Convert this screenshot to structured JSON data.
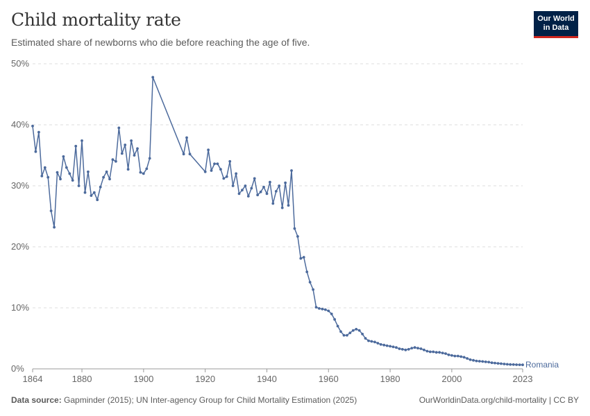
{
  "header": {
    "title": "Child mortality rate",
    "subtitle": "Estimated share of newborns who die before reaching the age of five."
  },
  "logo": {
    "line1": "Our World",
    "line2": "in Data",
    "bg_color": "#002147",
    "accent_color": "#ce261e"
  },
  "footer": {
    "source_label": "Data source:",
    "source_text": "Gapminder (2015); UN Inter-agency Group for Child Mortality Estimation (2025)",
    "link_text": "OurWorldinData.org/child-mortality | CC BY"
  },
  "chart_data": {
    "type": "line",
    "title": "Child mortality rate",
    "subtitle": "Estimated share of newborns who die before reaching the age of five.",
    "xlabel": "",
    "ylabel": "",
    "xlim": [
      1864,
      2023
    ],
    "ylim": [
      0,
      50
    ],
    "x_ticks": [
      "1864",
      "1880",
      "1900",
      "1920",
      "1940",
      "1960",
      "1980",
      "2000",
      "2023"
    ],
    "x_tick_values": [
      1864,
      1880,
      1900,
      1920,
      1940,
      1960,
      1980,
      2000,
      2023
    ],
    "y_ticks": [
      "0%",
      "10%",
      "20%",
      "30%",
      "40%",
      "50%"
    ],
    "y_tick_values": [
      0,
      10,
      20,
      30,
      40,
      50
    ],
    "grid": "horizontal-dashed",
    "line_color": "#4c6a9c",
    "series": [
      {
        "name": "Romania",
        "x": [
          1864,
          1865,
          1866,
          1867,
          1868,
          1869,
          1870,
          1871,
          1872,
          1873,
          1874,
          1875,
          1876,
          1877,
          1878,
          1879,
          1880,
          1881,
          1882,
          1883,
          1884,
          1885,
          1886,
          1887,
          1888,
          1889,
          1890,
          1891,
          1892,
          1893,
          1894,
          1895,
          1896,
          1897,
          1898,
          1899,
          1900,
          1901,
          1902,
          1903,
          1913,
          1914,
          1915,
          1920,
          1921,
          1922,
          1923,
          1924,
          1925,
          1926,
          1927,
          1928,
          1929,
          1930,
          1931,
          1932,
          1933,
          1934,
          1935,
          1936,
          1937,
          1938,
          1939,
          1940,
          1941,
          1942,
          1943,
          1944,
          1945,
          1946,
          1947,
          1948,
          1949,
          1950,
          1951,
          1952,
          1953,
          1954,
          1955,
          1956,
          1957,
          1958,
          1959,
          1960,
          1961,
          1962,
          1963,
          1964,
          1965,
          1966,
          1967,
          1968,
          1969,
          1970,
          1971,
          1972,
          1973,
          1974,
          1975,
          1976,
          1977,
          1978,
          1979,
          1980,
          1981,
          1982,
          1983,
          1984,
          1985,
          1986,
          1987,
          1988,
          1989,
          1990,
          1991,
          1992,
          1993,
          1994,
          1995,
          1996,
          1997,
          1998,
          1999,
          2000,
          2001,
          2002,
          2003,
          2004,
          2005,
          2006,
          2007,
          2008,
          2009,
          2010,
          2011,
          2012,
          2013,
          2014,
          2015,
          2016,
          2017,
          2018,
          2019,
          2020,
          2021,
          2022,
          2023
        ],
        "values": [
          39.8,
          35.6,
          38.8,
          31.6,
          33.0,
          31.4,
          25.9,
          23.2,
          32.2,
          31.1,
          34.8,
          33.0,
          32.0,
          30.9,
          36.5,
          30.0,
          37.4,
          28.9,
          32.3,
          28.4,
          28.9,
          27.7,
          29.8,
          31.4,
          32.3,
          31.1,
          34.3,
          34.0,
          39.5,
          35.3,
          36.7,
          32.7,
          37.4,
          35.0,
          36.1,
          32.2,
          32.0,
          32.8,
          34.5,
          47.8,
          35.2,
          37.9,
          35.2,
          32.3,
          35.9,
          32.5,
          33.6,
          33.6,
          32.7,
          31.2,
          31.5,
          34.0,
          30.0,
          32.0,
          28.7,
          29.3,
          30.0,
          28.3,
          29.6,
          31.2,
          28.5,
          29.0,
          29.8,
          28.7,
          30.6,
          27.1,
          29.1,
          30.0,
          26.4,
          30.5,
          26.8,
          32.5,
          23.0,
          21.7,
          18.1,
          18.3,
          15.9,
          14.2,
          13.0,
          10.1,
          9.9,
          9.8,
          9.7,
          9.5,
          9.0,
          8.1,
          7.0,
          6.1,
          5.5,
          5.5,
          5.9,
          6.3,
          6.5,
          6.3,
          5.7,
          5.0,
          4.6,
          4.5,
          4.4,
          4.2,
          4.0,
          3.9,
          3.8,
          3.7,
          3.6,
          3.5,
          3.3,
          3.2,
          3.1,
          3.2,
          3.4,
          3.5,
          3.4,
          3.3,
          3.1,
          2.9,
          2.8,
          2.8,
          2.7,
          2.7,
          2.6,
          2.5,
          2.3,
          2.2,
          2.1,
          2.1,
          2.0,
          1.9,
          1.7,
          1.5,
          1.4,
          1.3,
          1.25,
          1.2,
          1.15,
          1.1,
          1.0,
          0.95,
          0.9,
          0.85,
          0.8,
          0.75,
          0.72,
          0.7,
          0.68,
          0.67,
          0.66
        ]
      }
    ]
  }
}
